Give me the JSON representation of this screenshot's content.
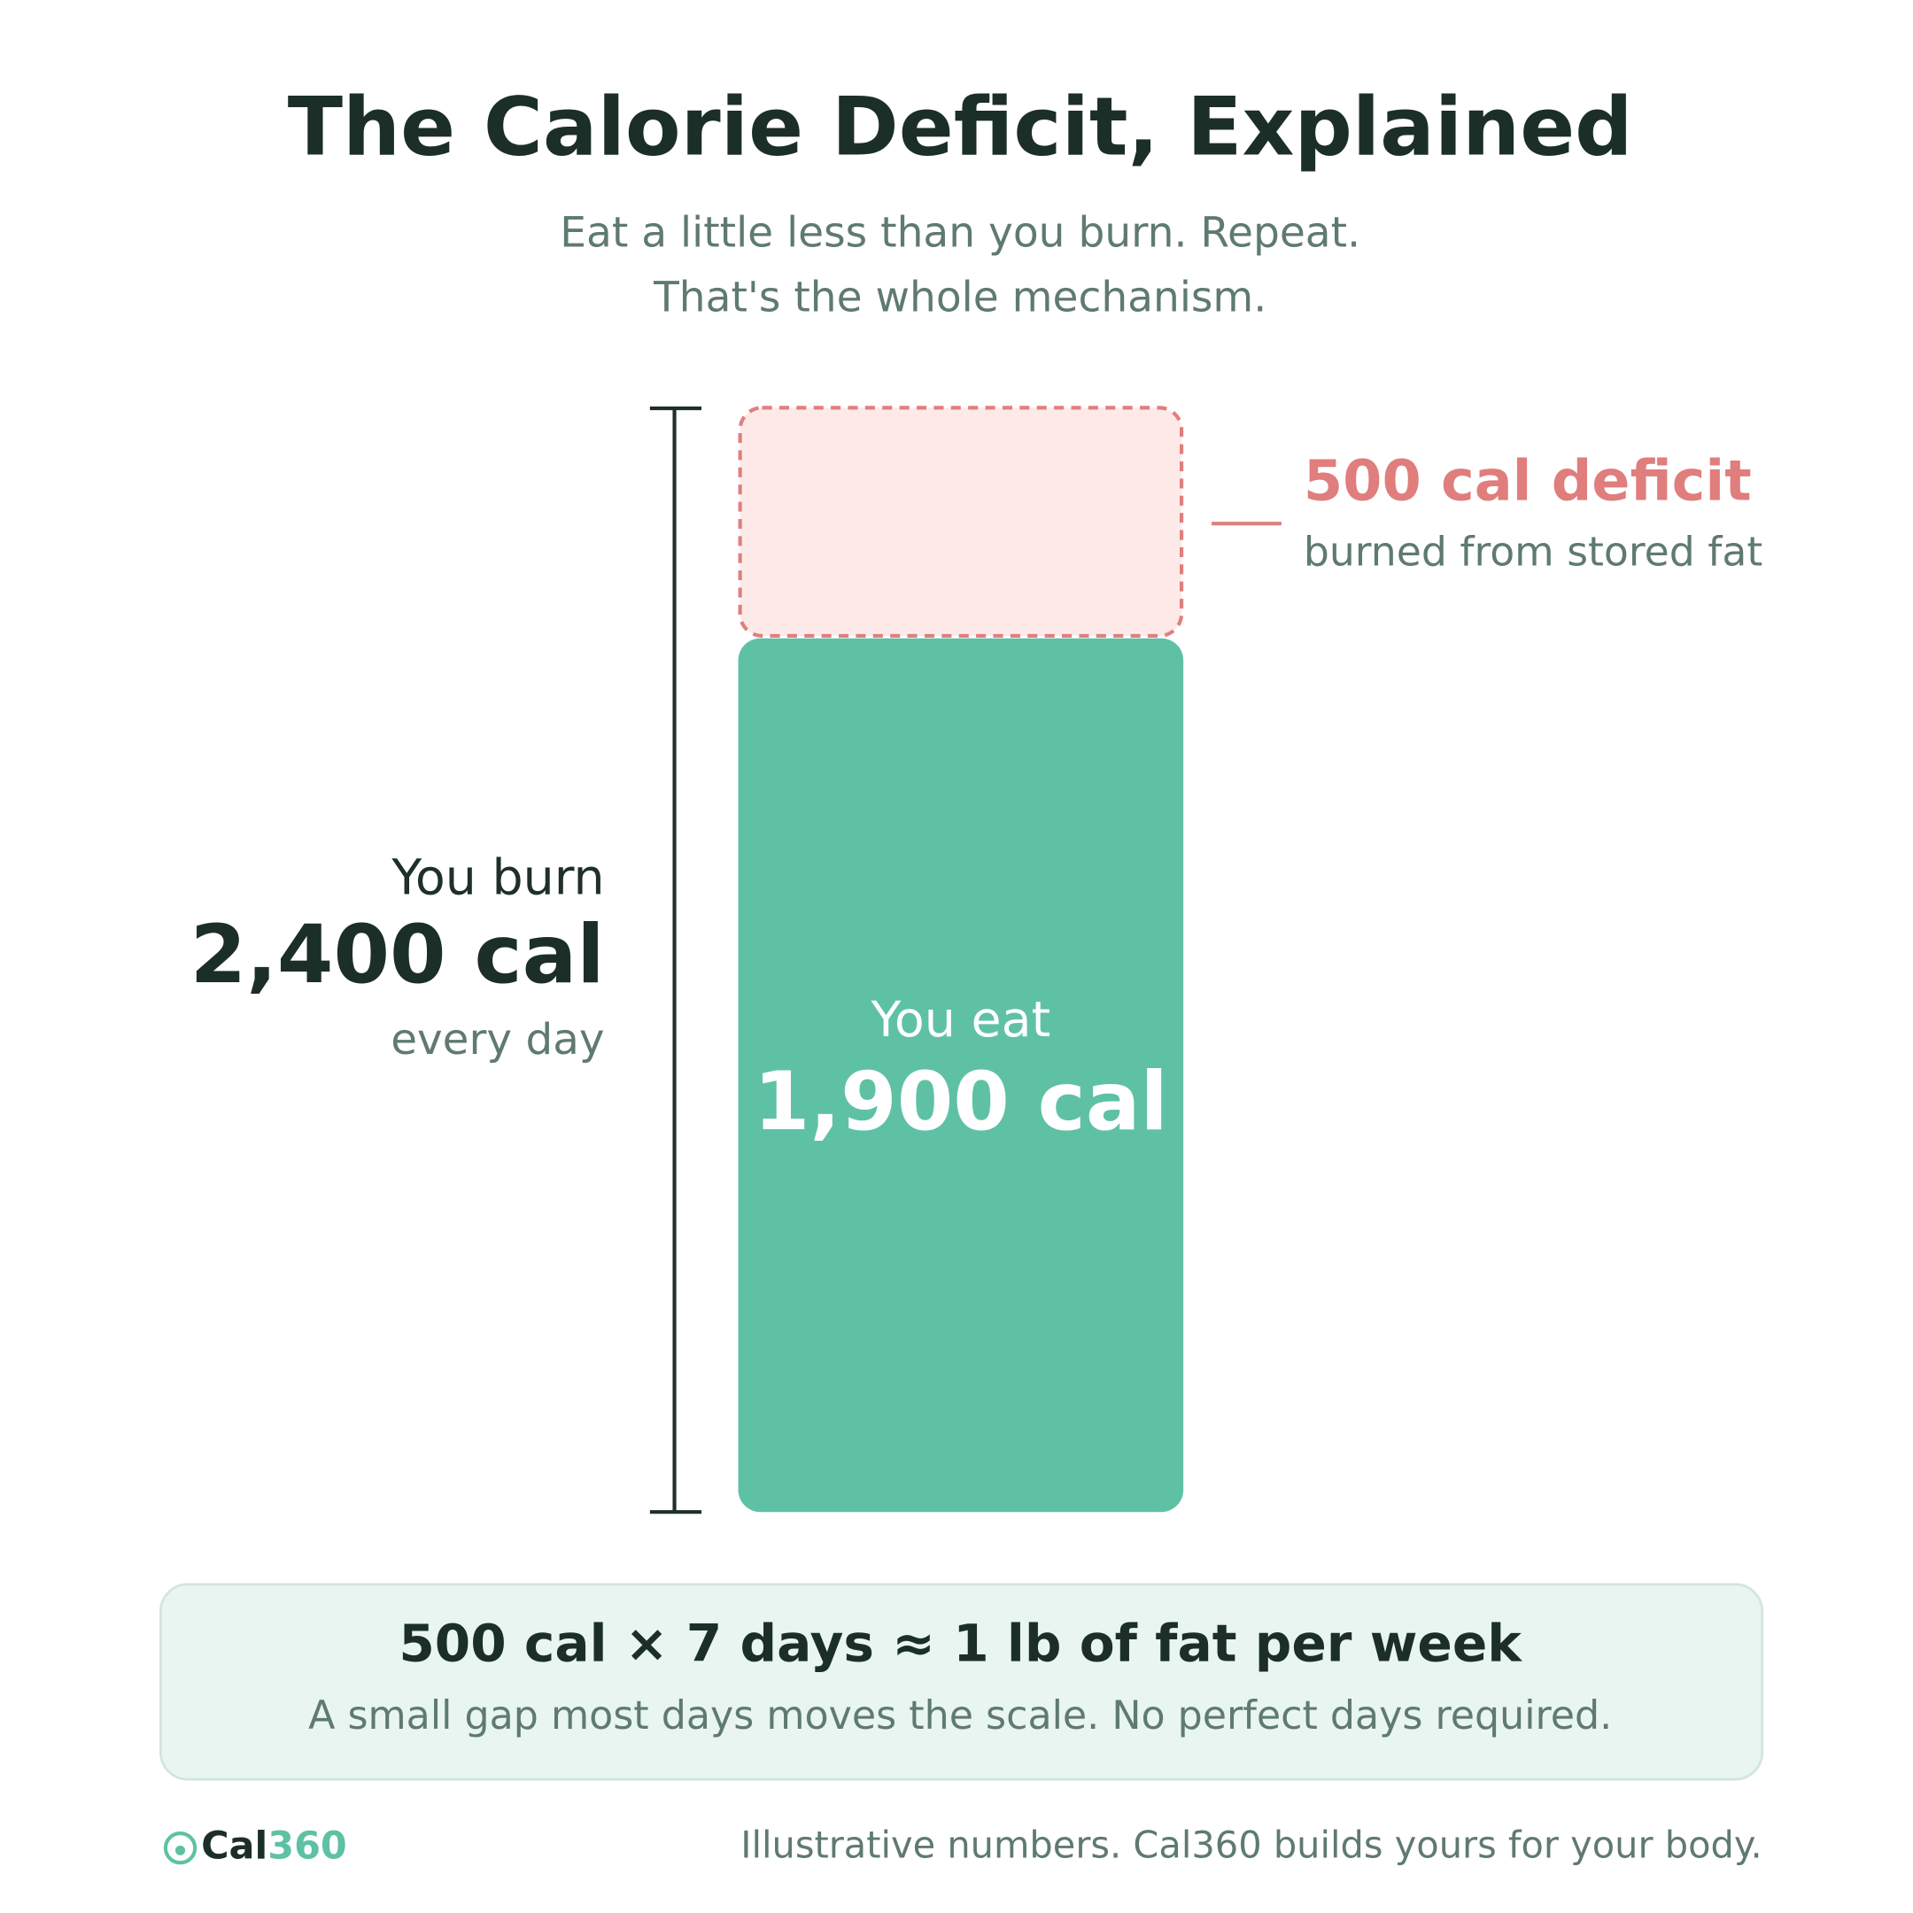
{
  "header": {
    "title": "The Calorie Deficit, Explained",
    "subtitle": [
      "Eat a little less than you burn. Repeat.",
      "That's the whole mechanism."
    ]
  },
  "burn": {
    "intro": "You burn",
    "value": 2400,
    "label": "2,400 cal",
    "note": "every day"
  },
  "eat": {
    "intro": "You eat",
    "value": 1900,
    "label": "1,900 cal"
  },
  "deficit": {
    "value": 500,
    "label": "500 cal deficit",
    "note": "burned from stored fat"
  },
  "summary": {
    "headline": "500 cal × 7 days ≈ 1 lb of fat per week",
    "text": "A small gap most days moves the scale. No perfect days required."
  },
  "footer": {
    "brand": [
      "Cal",
      "360"
    ],
    "note": "Illustrative numbers. Cal360 builds yours for your body."
  }
}
